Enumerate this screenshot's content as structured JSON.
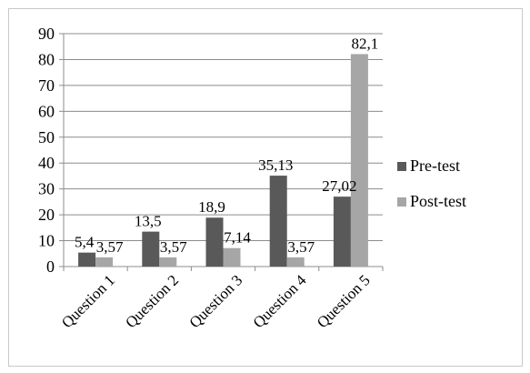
{
  "chart_data": {
    "type": "bar",
    "categories": [
      "Question 1",
      "Question 2",
      "Question 3",
      "Question 4",
      "Question 5"
    ],
    "series": [
      {
        "name": "Pre-test",
        "values": [
          5.4,
          13.5,
          18.9,
          35.13,
          27.02
        ],
        "labels": [
          "5,4",
          "13,5",
          "18,9",
          "35,13",
          "27,02"
        ],
        "color": "#595959"
      },
      {
        "name": "Post-test",
        "values": [
          3.57,
          3.57,
          7.14,
          3.57,
          82.1
        ],
        "labels": [
          "3,57",
          "3,57",
          "7,14",
          "3,57",
          "82,1"
        ],
        "color": "#a6a6a6"
      }
    ],
    "ylim": [
      0,
      90
    ],
    "yticks": [
      "0",
      "10",
      "20",
      "30",
      "40",
      "50",
      "60",
      "70",
      "80",
      "90"
    ],
    "grid": true,
    "legend_position": "right"
  }
}
